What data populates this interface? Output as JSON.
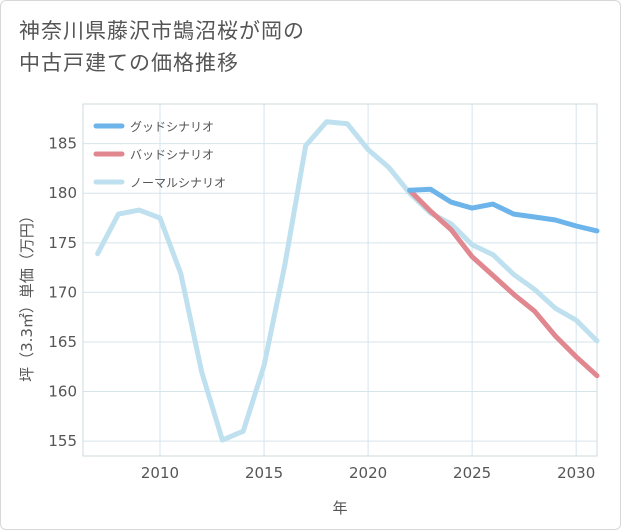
{
  "chart_data": {
    "type": "line",
    "title_line1": "神奈川県藤沢市鵠沼桜が岡の",
    "title_line2": "中古戸建ての価格推移",
    "xlabel": "年",
    "ylabel": "坪（3.3㎡）単価（万円）",
    "xlim": [
      2006.3,
      2031
    ],
    "ylim": [
      153.5,
      189
    ],
    "xticks": [
      2010,
      2015,
      2020,
      2025,
      2030
    ],
    "yticks": [
      155,
      160,
      165,
      170,
      175,
      180,
      185
    ],
    "series": [
      {
        "name": "グッドシナリオ",
        "color": "#6cb4ea",
        "x": [
          2022,
          2023,
          2024,
          2025,
          2026,
          2027,
          2028,
          2029,
          2030,
          2031
        ],
        "y": [
          180.3,
          180.4,
          179.1,
          178.5,
          178.9,
          177.9,
          177.6,
          177.3,
          176.7,
          176.2
        ]
      },
      {
        "name": "バッドシナリオ",
        "color": "#e0878f",
        "x": [
          2022,
          2023,
          2024,
          2025,
          2026,
          2027,
          2028,
          2029,
          2030,
          2031
        ],
        "y": [
          180.3,
          178.2,
          176.3,
          173.6,
          171.7,
          169.8,
          168.1,
          165.6,
          163.5,
          161.6
        ]
      },
      {
        "name": "ノーマルシナリオ",
        "color": "#bfe0ee",
        "x": [
          2007,
          2008,
          2009,
          2010,
          2011,
          2012,
          2013,
          2014,
          2015,
          2016,
          2017,
          2018,
          2019,
          2020,
          2021,
          2022,
          2023,
          2024,
          2025,
          2026,
          2027,
          2028,
          2029,
          2030,
          2031
        ],
        "y": [
          173.9,
          177.9,
          178.3,
          177.5,
          171.9,
          162.0,
          155.1,
          156.0,
          162.6,
          172.8,
          184.8,
          187.2,
          187.0,
          184.4,
          182.6,
          180.0,
          178.0,
          176.9,
          174.8,
          173.8,
          171.8,
          170.3,
          168.4,
          167.2,
          165.1
        ]
      }
    ]
  }
}
